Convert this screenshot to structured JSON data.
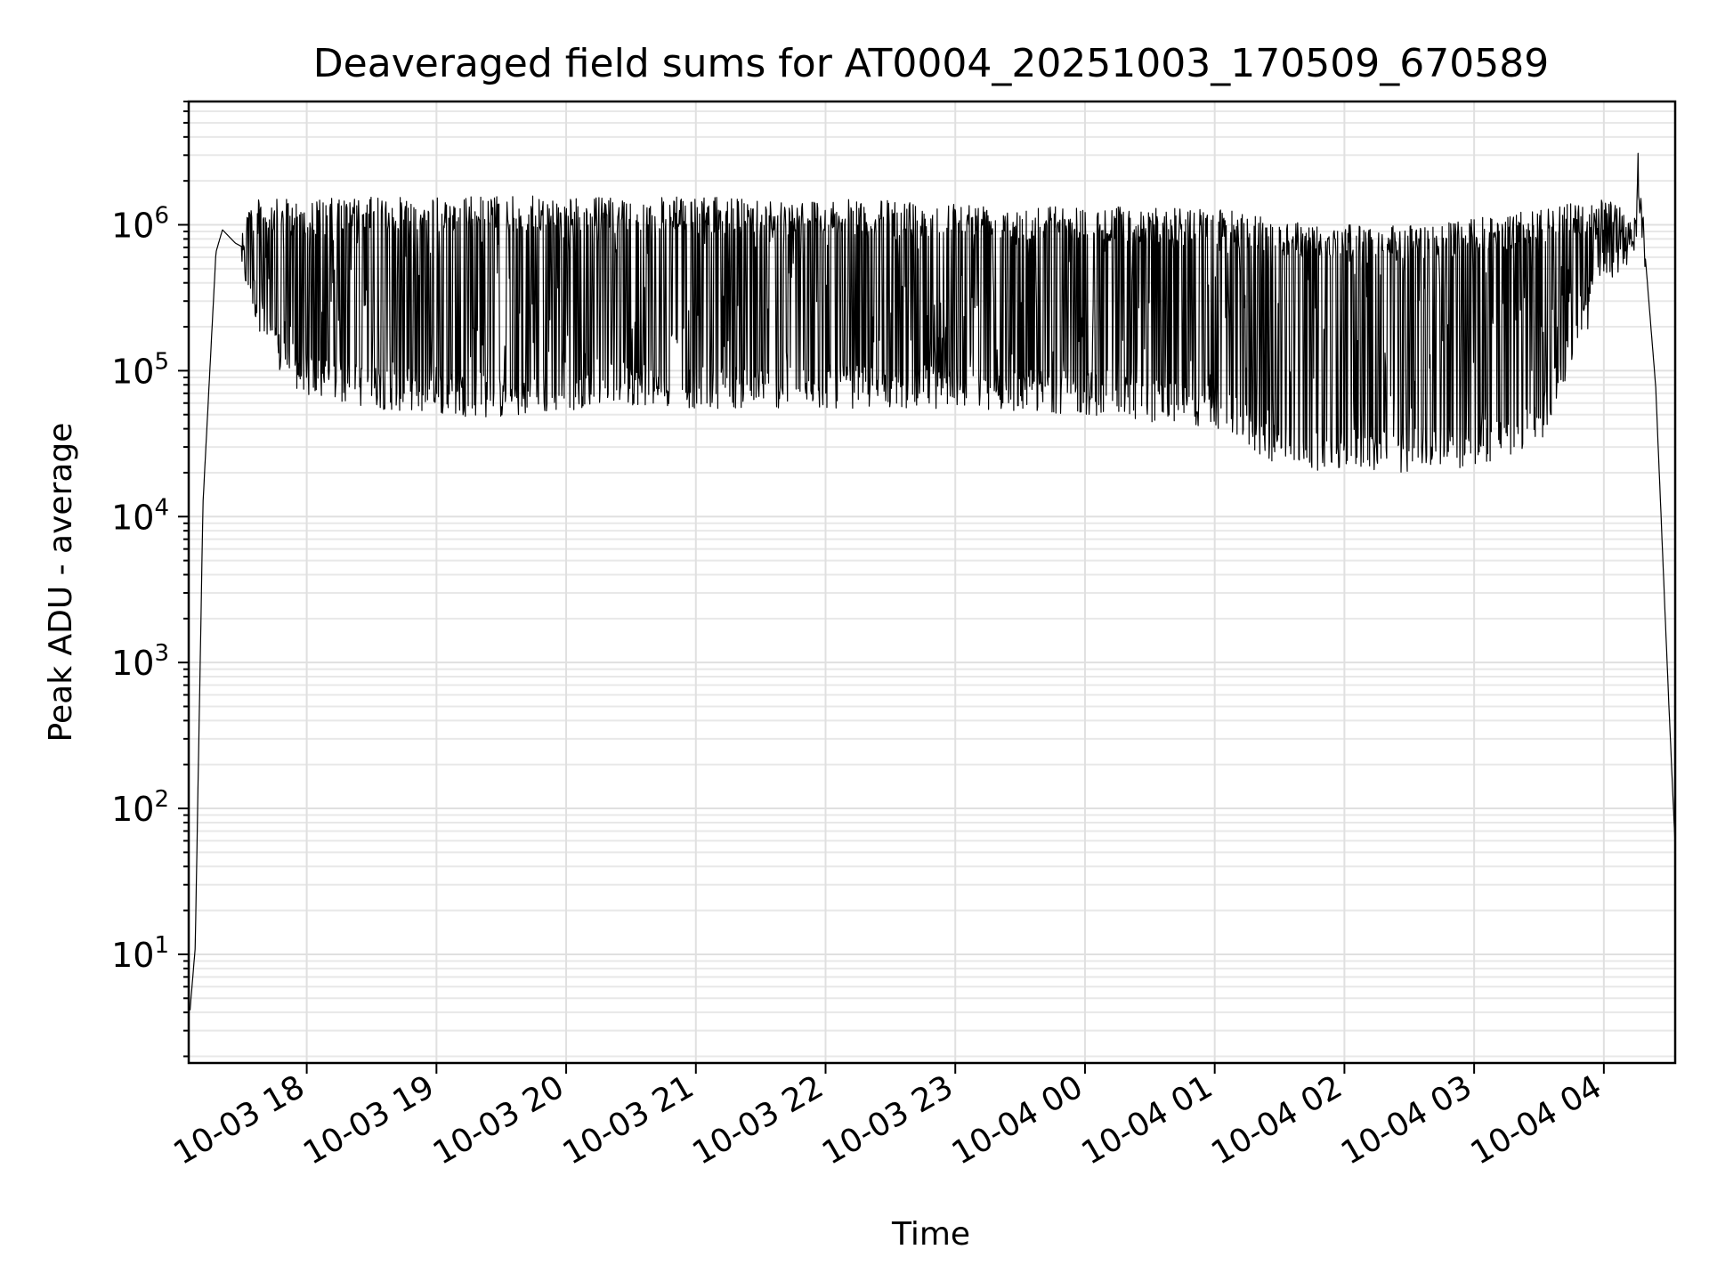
{
  "chart_data": {
    "type": "line",
    "title": "Deaveraged field sums for AT0004_20251003_170509_670589",
    "xlabel": "Time",
    "ylabel": "Peak ADU - average",
    "yscale": "log",
    "ylim": [
      1.8,
      7000000
    ],
    "xlim_hours": [
      17.09,
      28.55
    ],
    "grid": true,
    "color": "#000000",
    "y_ticks": [
      {
        "exp": 1,
        "base": "10",
        "sup": "1"
      },
      {
        "exp": 2,
        "base": "10",
        "sup": "2"
      },
      {
        "exp": 3,
        "base": "10",
        "sup": "3"
      },
      {
        "exp": 4,
        "base": "10",
        "sup": "4"
      },
      {
        "exp": 5,
        "base": "10",
        "sup": "5"
      },
      {
        "exp": 6,
        "base": "10",
        "sup": "6"
      }
    ],
    "x_ticks": [
      {
        "hour": 18,
        "label": "10-03 18"
      },
      {
        "hour": 19,
        "label": "10-03 19"
      },
      {
        "hour": 20,
        "label": "10-03 20"
      },
      {
        "hour": 21,
        "label": "10-03 21"
      },
      {
        "hour": 22,
        "label": "10-03 22"
      },
      {
        "hour": 23,
        "label": "10-03 23"
      },
      {
        "hour": 24,
        "label": "10-04 00"
      },
      {
        "hour": 25,
        "label": "10-04 01"
      },
      {
        "hour": 26,
        "label": "10-04 02"
      },
      {
        "hour": 27,
        "label": "10-04 03"
      },
      {
        "hour": 28,
        "label": "10-04 04"
      }
    ],
    "series": [
      {
        "name": "field sums",
        "envelope": [
          {
            "hour": 17.1,
            "low": 3.8,
            "high": 4.5
          },
          {
            "hour": 17.14,
            "low": 4.0,
            "high": 30
          },
          {
            "hour": 17.2,
            "low": 5000,
            "high": 30000
          },
          {
            "hour": 17.3,
            "low": 600000,
            "high": 700000
          },
          {
            "hour": 17.35,
            "low": 900000,
            "high": 950000
          },
          {
            "hour": 17.45,
            "low": 700000,
            "high": 800000
          },
          {
            "hour": 17.55,
            "low": 300000,
            "high": 1500000
          },
          {
            "hour": 17.75,
            "low": 100000,
            "high": 1500000
          },
          {
            "hour": 18.0,
            "low": 65000,
            "high": 1500000
          },
          {
            "hour": 18.5,
            "low": 55000,
            "high": 1550000
          },
          {
            "hour": 19.0,
            "low": 50000,
            "high": 1550000
          },
          {
            "hour": 19.5,
            "low": 47000,
            "high": 1600000
          },
          {
            "hour": 20.0,
            "low": 52000,
            "high": 1550000
          },
          {
            "hour": 20.25,
            "low": 60000,
            "high": 1550000
          },
          {
            "hour": 21.0,
            "low": 55000,
            "high": 1550000
          },
          {
            "hour": 22.0,
            "low": 55000,
            "high": 1500000
          },
          {
            "hour": 23.0,
            "low": 55000,
            "high": 1450000
          },
          {
            "hour": 24.0,
            "low": 50000,
            "high": 1350000
          },
          {
            "hour": 25.0,
            "low": 40000,
            "high": 1300000
          },
          {
            "hour": 25.5,
            "low": 22000,
            "high": 1100000
          },
          {
            "hour": 26.0,
            "low": 20000,
            "high": 1000000
          },
          {
            "hour": 26.5,
            "low": 20000,
            "high": 1000000
          },
          {
            "hour": 27.0,
            "low": 22000,
            "high": 1100000
          },
          {
            "hour": 27.5,
            "low": 30000,
            "high": 1300000
          },
          {
            "hour": 28.0,
            "low": 350000,
            "high": 1500000
          },
          {
            "hour": 28.25,
            "low": 600000,
            "high": 1200000
          },
          {
            "hour": 28.26,
            "low": 800000,
            "high": 3500000
          },
          {
            "hour": 28.3,
            "low": 900000,
            "high": 1100000
          },
          {
            "hour": 28.4,
            "low": 20000,
            "high": 300000
          },
          {
            "hour": 28.5,
            "low": 300,
            "high": 1000
          },
          {
            "hour": 28.55,
            "low": 50,
            "high": 60
          }
        ]
      }
    ]
  }
}
